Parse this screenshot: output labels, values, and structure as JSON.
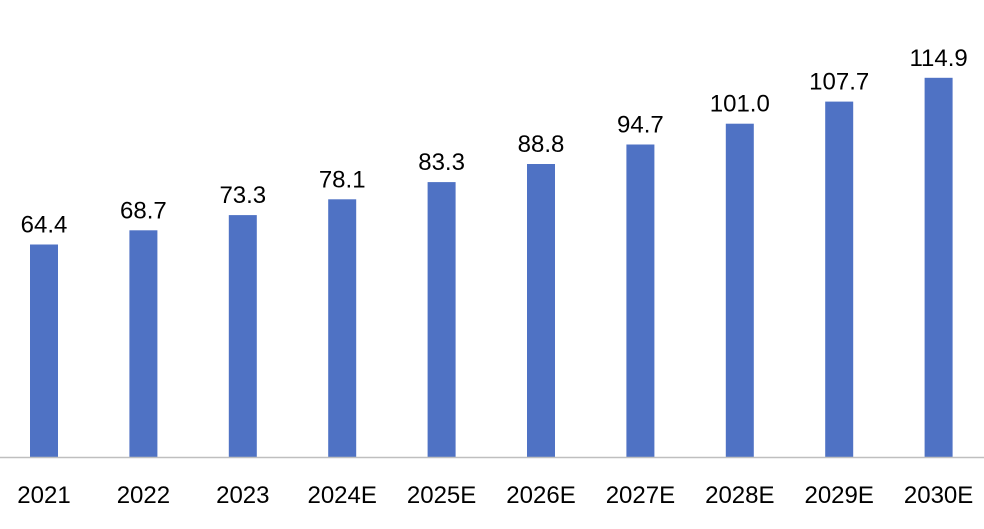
{
  "chart_data": {
    "type": "bar",
    "categories": [
      "2021",
      "2022",
      "2023",
      "2024E",
      "2025E",
      "2026E",
      "2027E",
      "2028E",
      "2029E",
      "2030E"
    ],
    "values": [
      64.4,
      68.7,
      73.3,
      78.1,
      83.3,
      88.8,
      94.7,
      101.0,
      107.7,
      114.9
    ],
    "value_labels": [
      "64.4",
      "68.7",
      "73.3",
      "78.1",
      "83.3",
      "88.8",
      "94.7",
      "101.0",
      "107.7",
      "114.9"
    ],
    "ylim": [
      0,
      130
    ],
    "grid": false,
    "legend": "none",
    "bar_color": "#4F72C4",
    "axis_color": "#BFBFBF"
  }
}
